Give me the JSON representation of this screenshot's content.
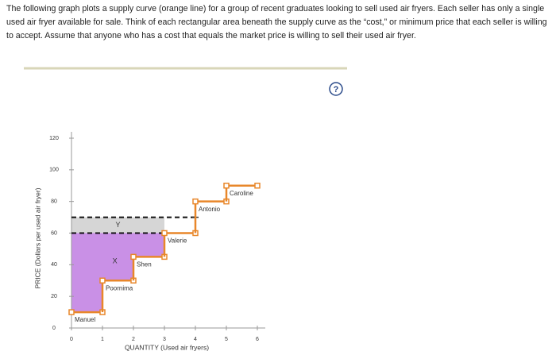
{
  "instructions": "The following graph plots a supply curve (orange line) for a group of recent graduates looking to sell used air fryers. Each seller has only a single used air fryer available for sale. Think of each rectangular area beneath the supply curve as the “cost,” or minimum price that each seller is willing to accept. Assume that anyone who has a cost that equals the market price is willing to sell their used air fryer.",
  "help": "?",
  "chart_data": {
    "type": "step",
    "x_label": "QUANTITY (Used air fryers)",
    "y_label": "PRICE (Dollars per used air fryer)",
    "categories": [
      "Manuel",
      "Poornima",
      "Shen",
      "Valerie",
      "Antonio",
      "Caroline"
    ],
    "values": [
      10,
      30,
      45,
      60,
      80,
      90
    ],
    "color": "#e8872a",
    "xlim": [
      0,
      6
    ],
    "xticks": [
      0,
      1,
      2,
      3,
      4,
      5,
      6
    ],
    "ylim": [
      0,
      120
    ],
    "yticks": [
      0,
      20,
      40,
      60,
      80,
      100,
      120
    ],
    "reference_lines": [
      {
        "value": 70,
        "x_end": 4
      },
      {
        "value": 60,
        "x_end": 3
      }
    ],
    "areas": [
      {
        "label": "X",
        "color": "#c990e6"
      },
      {
        "label": "Y",
        "color": "#d6d6d6"
      }
    ]
  }
}
